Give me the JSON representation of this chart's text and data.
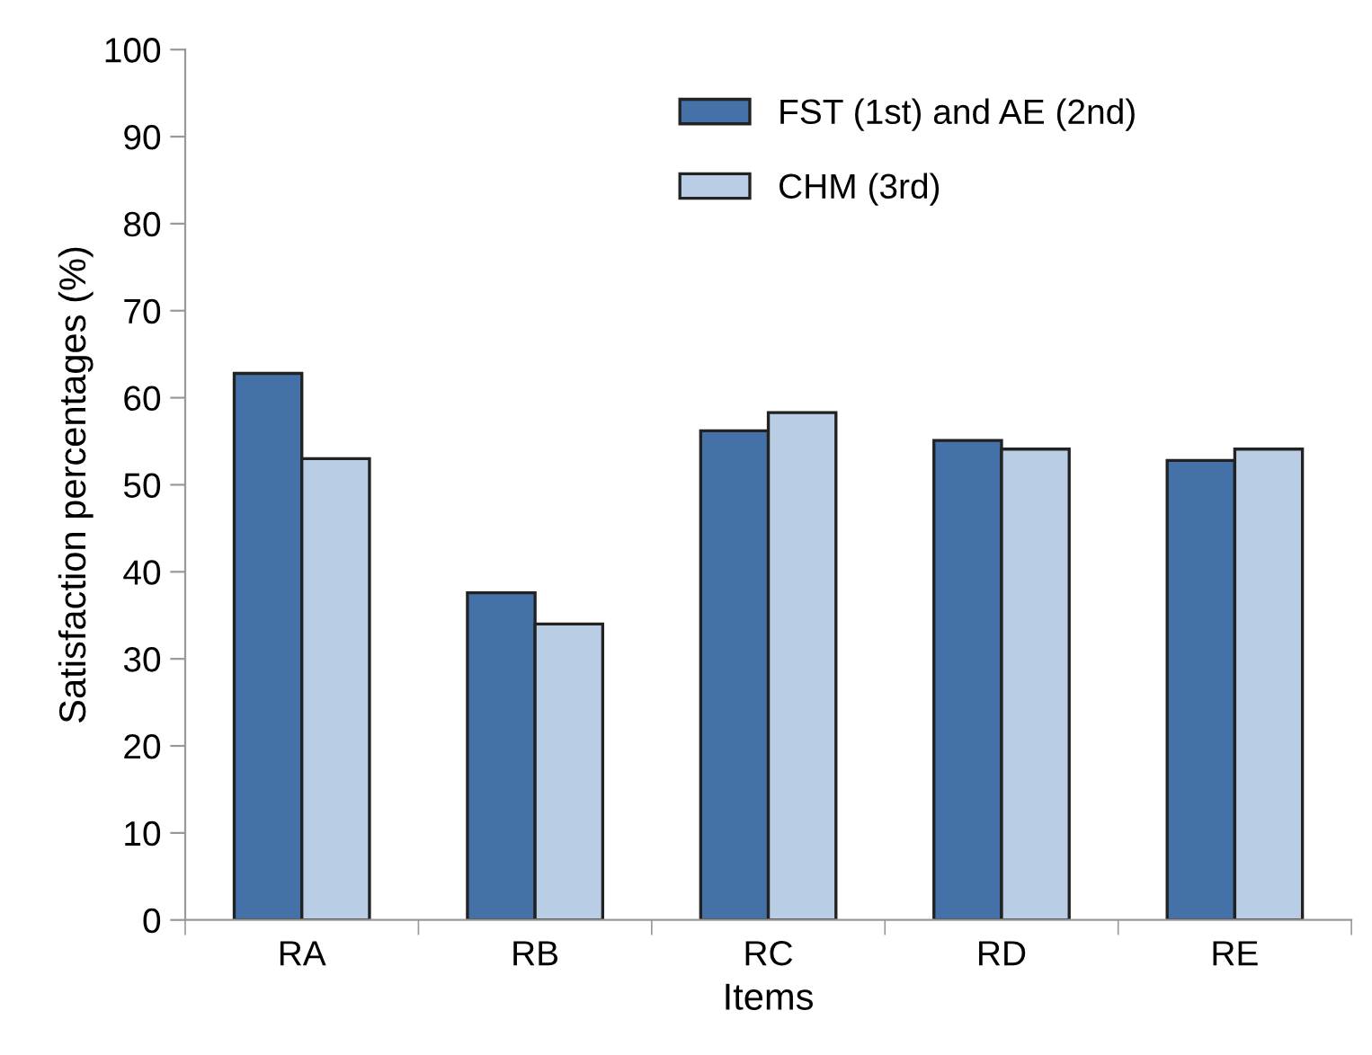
{
  "chart_data": {
    "type": "bar",
    "xlabel": "Items",
    "ylabel": "Satisfaction percentages (%)",
    "categories": [
      "RA",
      "RB",
      "RC",
      "RD",
      "RE"
    ],
    "series": [
      {
        "name": "FST (1st) and AE (2nd)",
        "color": "#4472a8",
        "values": [
          62.8,
          37.6,
          56.2,
          55.1,
          52.8
        ]
      },
      {
        "name": "CHM (3rd)",
        "color": "#b9cde5",
        "values": [
          53.0,
          34.0,
          58.3,
          54.1,
          54.1
        ]
      }
    ],
    "ylim": [
      0,
      100
    ],
    "yticks": [
      0,
      10,
      20,
      30,
      40,
      50,
      60,
      70,
      80,
      90,
      100
    ],
    "grid": false,
    "legend": "top"
  }
}
